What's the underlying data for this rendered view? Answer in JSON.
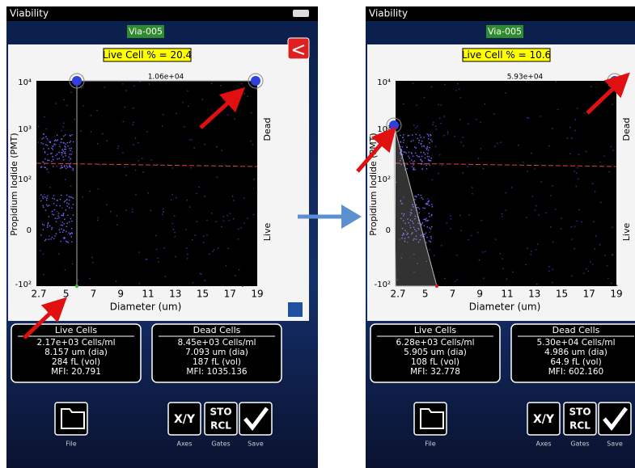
{
  "panels": [
    {
      "title": "Viability",
      "sample": "Via-005",
      "live_cell": "Live Cell % = 20.4",
      "gate_value": "1.06e+04",
      "y_axis_label": "Propidium Iodide (PMT)",
      "x_axis_label": "Diameter (um)",
      "y_ticks": [
        "10⁴",
        "10³",
        "10²",
        "0",
        "-10²"
      ],
      "x_ticks": [
        "2.7",
        "5",
        "7",
        "9",
        "11",
        "13",
        "15",
        "17",
        "19"
      ],
      "side_labels": [
        "Dead",
        "Live"
      ],
      "live_box": {
        "title": "Live Cells",
        "lines": [
          "2.17e+03 Cells/ml",
          "8.157 um (dia)",
          "284 fL (vol)",
          "MFI: 20.791"
        ]
      },
      "dead_box": {
        "title": "Dead Cells",
        "lines": [
          "8.45e+03 Cells/ml",
          "7.093 um (dia)",
          "187 fL (vol)",
          "MFI: 1035.136"
        ]
      },
      "buttons": {
        "xy": "X/Y",
        "sto": "STO",
        "rcl": "RCL",
        "labels": [
          "File",
          "Axes",
          "Gates",
          "Save"
        ]
      }
    },
    {
      "title": "Viability",
      "sample": "Via-005",
      "live_cell": "Live Cell % = 10.6",
      "gate_value": "5.93e+04",
      "y_axis_label": "Propidium Iodide (PMT)",
      "x_axis_label": "Diameter (um)",
      "y_ticks": [
        "10⁴",
        "10³",
        "10²",
        "0",
        "-10²"
      ],
      "x_ticks": [
        "2.7",
        "5",
        "7",
        "9",
        "11",
        "13",
        "15",
        "17",
        "19"
      ],
      "side_labels": [
        "Dead",
        "Live"
      ],
      "live_box": {
        "title": "Live Cells",
        "lines": [
          "6.28e+03 Cells/ml",
          "5.905 um (dia)",
          "108 fL (vol)",
          "MFI: 32.778"
        ]
      },
      "dead_box": {
        "title": "Dead Cells",
        "lines": [
          "5.30e+04 Cells/ml",
          "4.986 um (dia)",
          "64.9 fL (vol)",
          "MFI: 602.160"
        ]
      },
      "buttons": {
        "xy": "X/Y",
        "sto": "STO",
        "rcl": "RCL",
        "labels": [
          "File",
          "Axes",
          "Gates",
          "Save"
        ]
      }
    }
  ]
}
